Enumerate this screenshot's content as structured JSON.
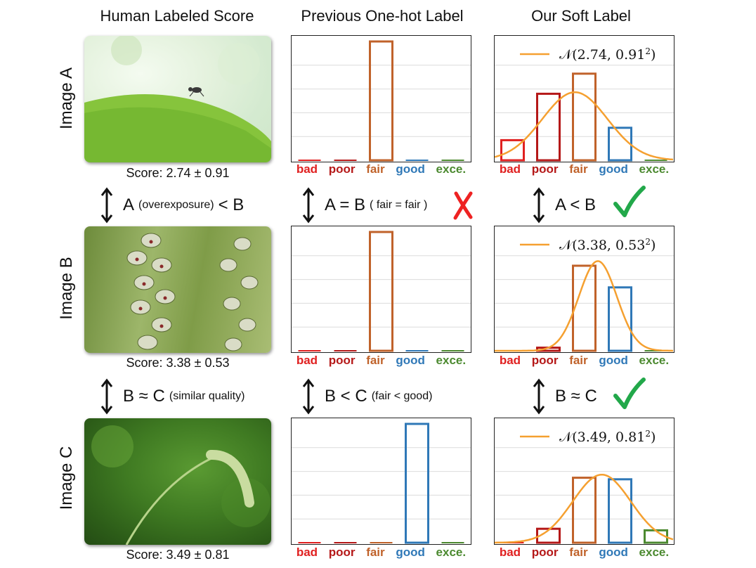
{
  "headers": {
    "col1": "Human Labeled Score",
    "col2": "Previous One-hot Label",
    "col3": "Our Soft Label"
  },
  "category_labels": [
    "bad",
    "poor",
    "fair",
    "good",
    "exce."
  ],
  "category_colors": [
    "#e02020",
    "#b51818",
    "#c0622a",
    "#2f78b7",
    "#4c8a30"
  ],
  "curve_color": "#f5a030",
  "rows": [
    {
      "label": "Image A",
      "score": "Score: 2.74 ± 0.91",
      "legend_mu": "2.74",
      "legend_sigma": "0.91",
      "onehot": [
        0,
        0,
        1,
        0,
        0
      ],
      "soft": [
        0.13,
        0.43,
        0.56,
        0.21,
        0.0
      ],
      "mu": 2.74,
      "sigma": 0.91
    },
    {
      "label": "Image B",
      "score": "Score: 3.38 ± 0.53",
      "legend_mu": "3.38",
      "legend_sigma": "0.53",
      "onehot": [
        0,
        0,
        1,
        0,
        0
      ],
      "soft": [
        0.0,
        0.02,
        0.55,
        0.41,
        0.0
      ],
      "mu": 3.38,
      "sigma": 0.53
    },
    {
      "label": "Image C",
      "score": "Score: 3.49 ± 0.81",
      "legend_mu": "3.49",
      "legend_sigma": "0.81",
      "onehot": [
        0,
        0,
        0,
        1,
        0
      ],
      "soft": [
        0.0,
        0.09,
        0.42,
        0.41,
        0.08
      ],
      "mu": 3.49,
      "sigma": 0.81
    }
  ],
  "comparisons": [
    {
      "human": {
        "left": "A",
        "small": "(overexposure)",
        "right": "< B"
      },
      "onehot": {
        "main": "A = B",
        "small": "( fair = fair )",
        "mark": "cross"
      },
      "soft": {
        "main": "A < B",
        "mark": "check"
      }
    },
    {
      "human": {
        "left": "B ≈ C",
        "small": "(similar quality)",
        "right": ""
      },
      "onehot": {
        "main": "B < C",
        "small": "(fair < good)",
        "mark": ""
      },
      "soft": {
        "main": "B ≈ C",
        "mark": "check"
      }
    }
  ]
}
